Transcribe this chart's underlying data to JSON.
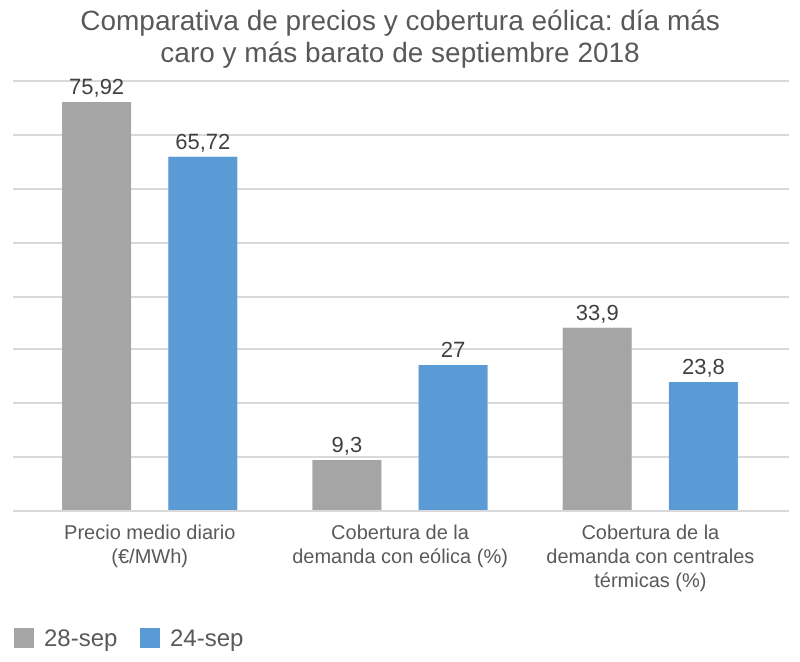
{
  "chart_data": {
    "type": "bar",
    "title": "Comparativa de precios y cobertura eólica: día más caro y más barato de septiembre 2018",
    "categories": [
      "Precio medio diario (€/MWh)",
      "Cobertura de la demanda con eólica (%)",
      "Cobertura de la demanda con centrales térmicas (%)"
    ],
    "series": [
      {
        "name": "28-sep",
        "color": "#a5a5a5",
        "values": [
          75.92,
          9.3,
          33.9
        ],
        "value_labels": [
          "75,92",
          "9,3",
          "33,9"
        ]
      },
      {
        "name": "24-sep",
        "color": "#5b9bd5",
        "values": [
          65.72,
          27,
          23.8
        ],
        "value_labels": [
          "65,72",
          "27",
          "23,8"
        ]
      }
    ],
    "ylim": [
      0,
      80
    ],
    "grid": "y",
    "legend": "bottom"
  }
}
